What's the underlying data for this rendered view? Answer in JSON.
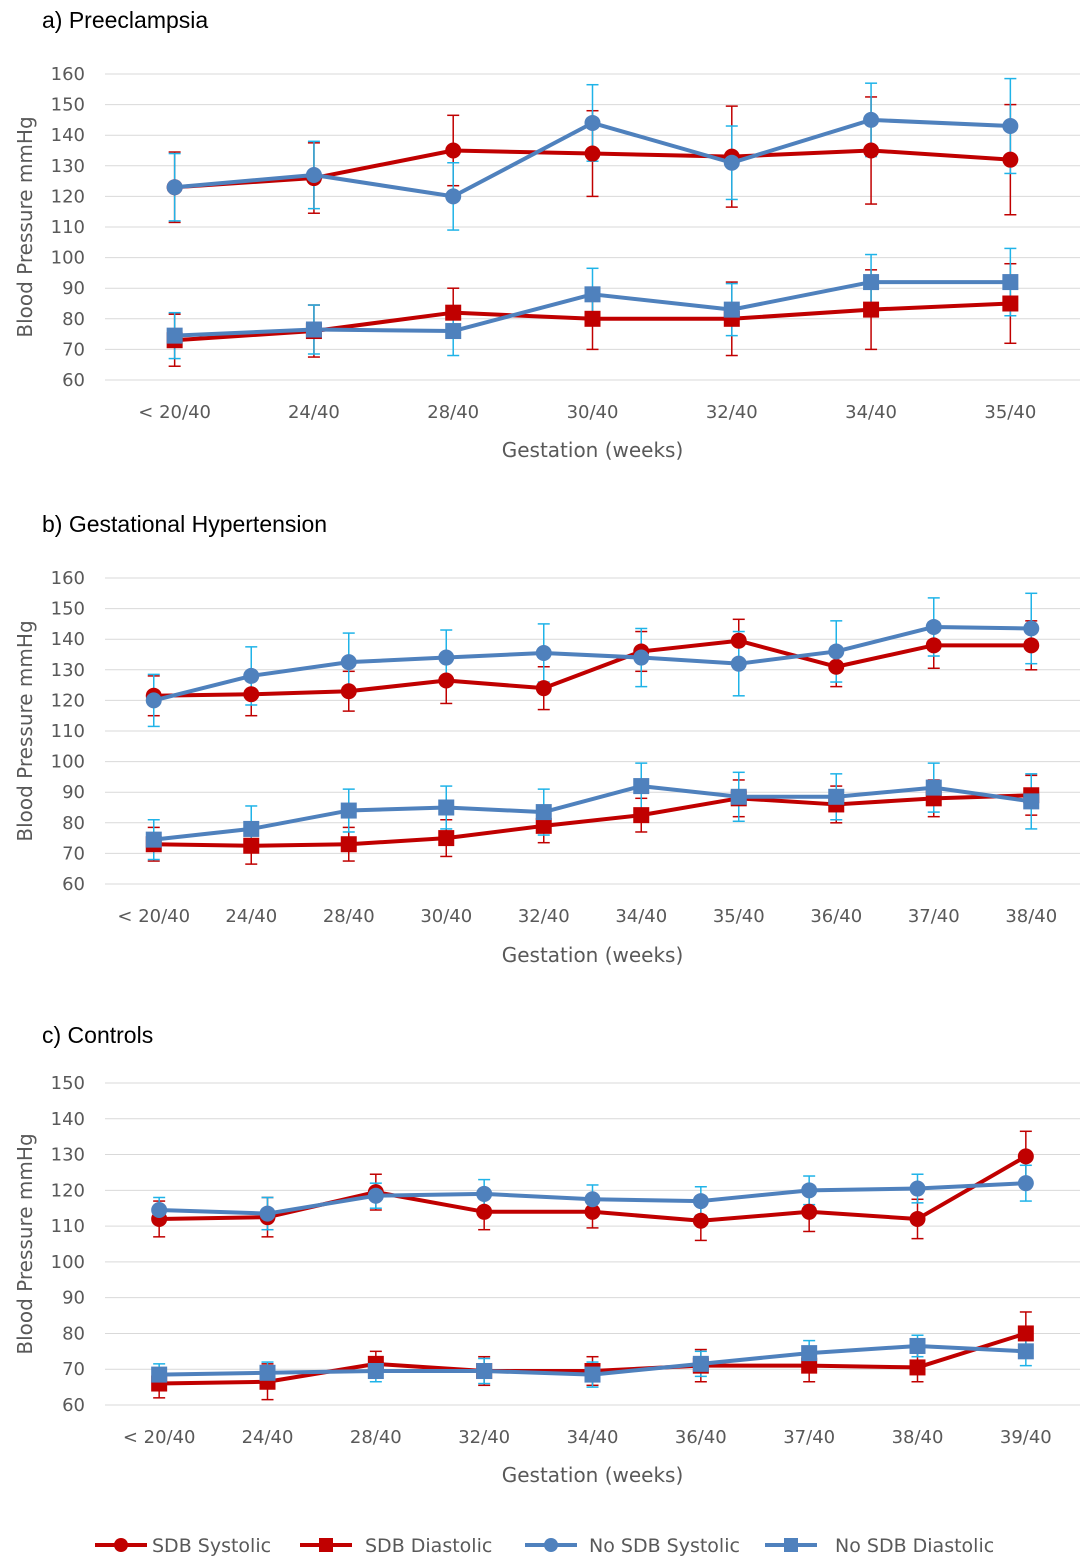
{
  "legend": [
    {
      "label": "SDB Systolic",
      "marker": "circle",
      "color": "#C00000"
    },
    {
      "label": "SDB Diastolic",
      "marker": "square",
      "color": "#C00000"
    },
    {
      "label": "No SDB Systolic",
      "marker": "circle",
      "color": "#4F81BD"
    },
    {
      "label": "No SDB Diastolic",
      "marker": "square",
      "color": "#4F81BD"
    }
  ],
  "colors": {
    "sdb": "#C00000",
    "no_sdb": "#4F81BD",
    "no_sdb_error": "#1FB3E8",
    "grid": "#D9D9D9",
    "text": "#595959"
  },
  "chart_data": [
    {
      "type": "line",
      "title": "a)   Preeclampsia",
      "xlabel": "Gestation (weeks)",
      "ylabel": "Blood Pressure mmHg",
      "ylim": [
        60,
        160
      ],
      "ytick_step": 10,
      "grid": true,
      "categories": [
        "< 20/40",
        "24/40",
        "28/40",
        "30/40",
        "32/40",
        "34/40",
        "35/40"
      ],
      "series": [
        {
          "name": "SDB Systolic",
          "marker": "circle",
          "values": [
            123,
            126,
            135,
            134,
            133,
            135,
            132
          ],
          "err": [
            11.5,
            11.5,
            11.5,
            14,
            16.5,
            17.5,
            18
          ]
        },
        {
          "name": "SDB Diastolic",
          "marker": "square",
          "values": [
            73,
            76,
            82,
            80,
            80,
            83,
            85
          ],
          "err": [
            8.5,
            8.5,
            8,
            10,
            12,
            13,
            13
          ]
        },
        {
          "name": "No SDB Systolic",
          "marker": "circle",
          "values": [
            123,
            127,
            120,
            144,
            131,
            145,
            143
          ],
          "err": [
            11,
            11,
            11,
            12.5,
            12,
            12,
            15.5
          ]
        },
        {
          "name": "No SDB Diastolic",
          "marker": "square",
          "values": [
            74.5,
            76.5,
            76,
            88,
            83,
            92,
            92
          ],
          "err": [
            7.5,
            8,
            8,
            8.5,
            8.5,
            9,
            11
          ]
        }
      ]
    },
    {
      "type": "line",
      "title": "b)   Gestational Hypertension",
      "xlabel": "Gestation (weeks)",
      "ylabel": "Blood Pressure mmHg",
      "ylim": [
        60,
        160
      ],
      "ytick_step": 10,
      "grid": true,
      "categories": [
        "< 20/40",
        "24/40",
        "28/40",
        "30/40",
        "32/40",
        "34/40",
        "35/40",
        "36/40",
        "37/40",
        "38/40"
      ],
      "series": [
        {
          "name": "SDB Systolic",
          "marker": "circle",
          "values": [
            121.5,
            122,
            123,
            126.5,
            124,
            136,
            139.5,
            131,
            138,
            138
          ],
          "err": [
            6.5,
            7,
            6.5,
            7.5,
            7,
            6.5,
            7,
            6.5,
            7.5,
            8
          ]
        },
        {
          "name": "SDB Diastolic",
          "marker": "square",
          "values": [
            73,
            72.5,
            73,
            75,
            79,
            82.5,
            88,
            86,
            88,
            89
          ],
          "err": [
            5.5,
            6,
            5.5,
            6,
            5.5,
            5.5,
            6,
            6,
            6,
            6.5
          ]
        },
        {
          "name": "No SDB Systolic",
          "marker": "circle",
          "values": [
            120,
            128,
            132.5,
            134,
            135.5,
            134,
            132,
            136,
            144,
            143.5
          ],
          "err": [
            8.5,
            9.5,
            9.5,
            9,
            9.5,
            9.5,
            10.5,
            10,
            9.5,
            11.5
          ]
        },
        {
          "name": "No SDB Diastolic",
          "marker": "square",
          "values": [
            74.5,
            78,
            84,
            85,
            83.5,
            92,
            88.5,
            88.5,
            91.5,
            87
          ],
          "err": [
            6.5,
            7.5,
            7,
            7,
            7.5,
            7.5,
            8,
            7.5,
            8,
            9
          ]
        }
      ]
    },
    {
      "type": "line",
      "title": "c)   Controls",
      "xlabel": "Gestation (weeks)",
      "ylabel": "Blood Pressure mmHg",
      "ylim": [
        60,
        150
      ],
      "ytick_step": 10,
      "grid": true,
      "categories": [
        "< 20/40",
        "24/40",
        "28/40",
        "32/40",
        "34/40",
        "36/40",
        "37/40",
        "38/40",
        "39/40"
      ],
      "series": [
        {
          "name": "SDB Systolic",
          "marker": "circle",
          "values": [
            112,
            112.5,
            119.5,
            114,
            114,
            111.5,
            114,
            112,
            129.5
          ],
          "err": [
            5,
            5.5,
            5,
            5,
            4.5,
            5.5,
            5.5,
            5.5,
            7
          ]
        },
        {
          "name": "SDB Diastolic",
          "marker": "square",
          "values": [
            66,
            66.5,
            71.5,
            69.5,
            69.5,
            71,
            71,
            70.5,
            80
          ],
          "err": [
            4,
            5,
            3.5,
            4,
            4,
            4.5,
            4.5,
            4,
            6
          ]
        },
        {
          "name": "No SDB Systolic",
          "marker": "circle",
          "values": [
            114.5,
            113.5,
            118.5,
            119,
            117.5,
            117,
            120,
            120.5,
            122
          ],
          "err": [
            3.5,
            4.5,
            3.5,
            4,
            4,
            4,
            4,
            4,
            5
          ]
        },
        {
          "name": "No SDB Diastolic",
          "marker": "square",
          "values": [
            68.5,
            69,
            69.5,
            69.5,
            68.5,
            71.5,
            74.5,
            76.5,
            75
          ],
          "err": [
            3,
            3,
            3,
            3.5,
            3.5,
            3.5,
            3.5,
            3,
            4
          ]
        }
      ]
    }
  ]
}
